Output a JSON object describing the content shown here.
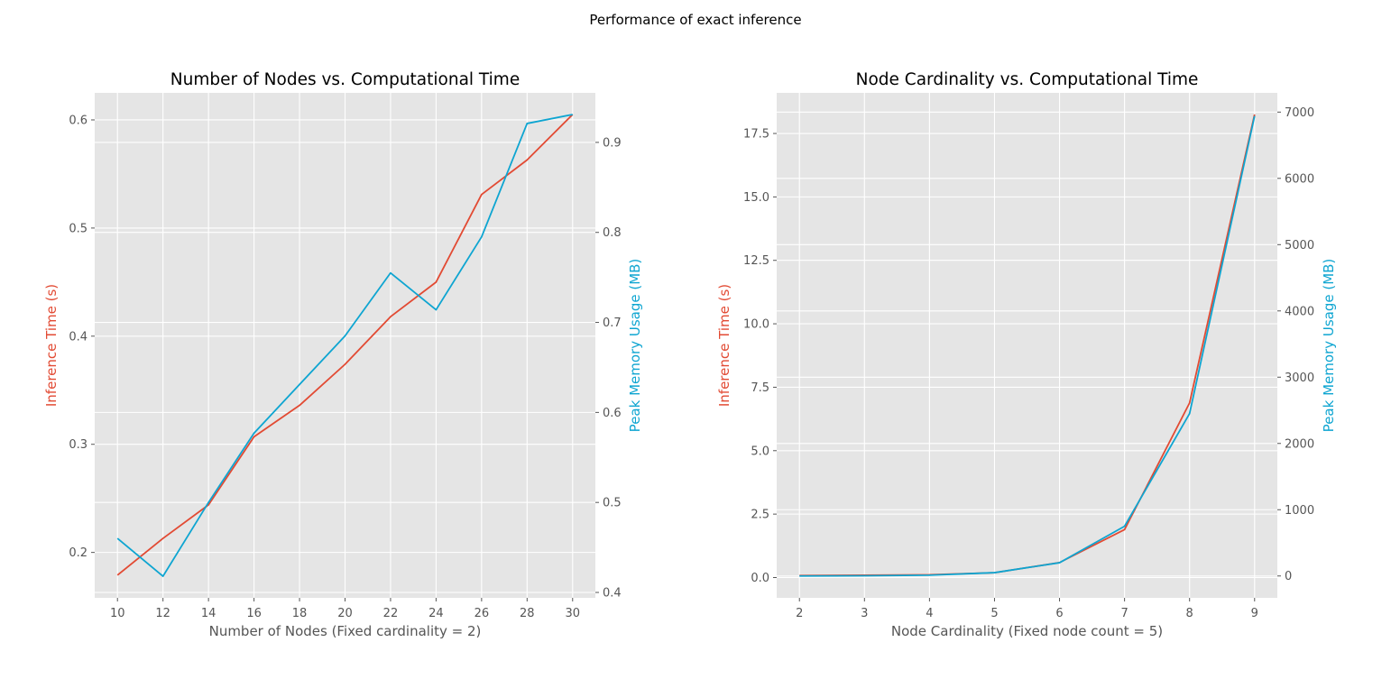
{
  "figure": {
    "suptitle": "Performance of exact inference",
    "colors": {
      "background": "#ffffff",
      "axes_bg": "#e5e5e5",
      "grid": "#ffffff",
      "tick_text": "#555555",
      "time": "#e24a33",
      "memory": "#0ea5d1"
    }
  },
  "chart_data": [
    {
      "type": "line",
      "title": "Number of Nodes vs. Computational Time",
      "xlabel": "Number of Nodes (Fixed cardinality = 2)",
      "ylabel_left": "Inference Time (s)",
      "ylabel_right": "Peak Memory Usage (MB)",
      "x": [
        10,
        12,
        14,
        16,
        18,
        20,
        22,
        24,
        26,
        28,
        30
      ],
      "xticks": [
        10,
        12,
        14,
        16,
        18,
        20,
        22,
        24,
        26,
        28,
        30
      ],
      "xticklabels": [
        "10",
        "12",
        "14",
        "16",
        "18",
        "20",
        "22",
        "24",
        "26",
        "28",
        "30"
      ],
      "xlim": [
        9.0,
        31.0
      ],
      "ylim_left": [
        0.158,
        0.625
      ],
      "yticks_left": [
        0.2,
        0.3,
        0.4,
        0.5,
        0.6
      ],
      "yticklabels_left": [
        "0.2",
        "0.3",
        "0.4",
        "0.5",
        "0.6"
      ],
      "ylim_right": [
        0.394,
        0.955
      ],
      "yticks_right": [
        0.4,
        0.5,
        0.6,
        0.7,
        0.8,
        0.9
      ],
      "yticklabels_right": [
        "0.4",
        "0.5",
        "0.6",
        "0.7",
        "0.8",
        "0.9"
      ],
      "grid": true,
      "series": [
        {
          "axis": "left",
          "color": "#e24a33",
          "values": [
            0.179,
            0.213,
            0.244,
            0.307,
            0.336,
            0.374,
            0.418,
            0.45,
            0.531,
            0.563,
            0.605
          ]
        },
        {
          "axis": "right",
          "color": "#0ea5d1",
          "values": [
            0.46,
            0.418,
            0.5,
            0.577,
            0.631,
            0.685,
            0.755,
            0.714,
            0.795,
            0.921,
            0.931
          ]
        }
      ]
    },
    {
      "type": "line",
      "title": "Node Cardinality vs. Computational Time",
      "xlabel": "Node Cardinality (Fixed node count = 5)",
      "ylabel_left": "Inference Time (s)",
      "ylabel_right": "Peak Memory Usage (MB)",
      "x": [
        2,
        3,
        4,
        5,
        6,
        7,
        8,
        9
      ],
      "xticks": [
        2,
        3,
        4,
        5,
        6,
        7,
        8,
        9
      ],
      "xticklabels": [
        "2",
        "3",
        "4",
        "5",
        "6",
        "7",
        "8",
        "9"
      ],
      "xlim": [
        1.65,
        9.35
      ],
      "ylim_left": [
        -0.8,
        19.1
      ],
      "yticks_left": [
        0.0,
        2.5,
        5.0,
        7.5,
        10.0,
        12.5,
        15.0,
        17.5
      ],
      "yticklabels_left": [
        "0.0",
        "2.5",
        "5.0",
        "7.5",
        "10.0",
        "12.5",
        "15.0",
        "17.5"
      ],
      "ylim_right": [
        -330,
        7290
      ],
      "yticks_right": [
        0,
        1000,
        2000,
        3000,
        4000,
        5000,
        6000,
        7000
      ],
      "yticklabels_right": [
        "0",
        "1000",
        "2000",
        "3000",
        "4000",
        "5000",
        "6000",
        "7000"
      ],
      "grid": true,
      "series": [
        {
          "axis": "left",
          "color": "#e24a33",
          "values": [
            0.08,
            0.09,
            0.11,
            0.19,
            0.59,
            1.89,
            6.88,
            18.25
          ]
        },
        {
          "axis": "right",
          "color": "#0ea5d1",
          "values": [
            0,
            3,
            12,
            50,
            200,
            750,
            2450,
            6940
          ]
        }
      ]
    }
  ]
}
